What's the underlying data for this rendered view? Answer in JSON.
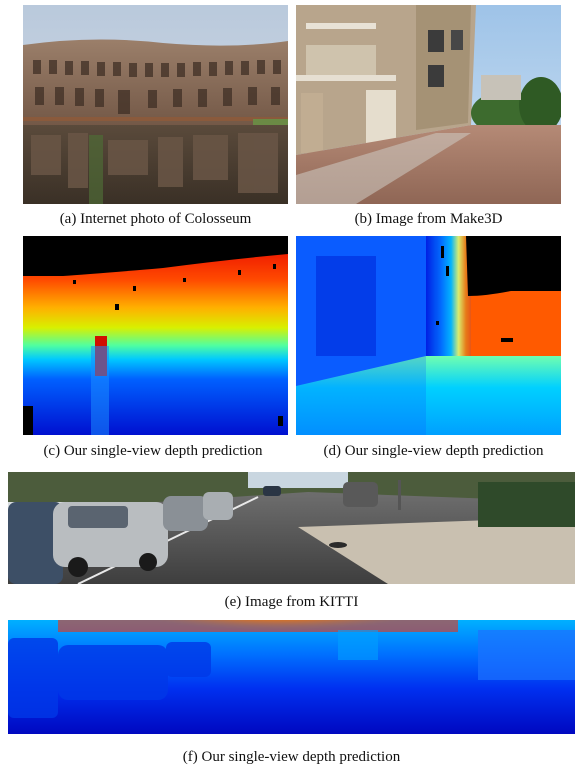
{
  "figure": {
    "panels": [
      {
        "id": "a",
        "caption": "(a) Internet photo of Colosseum",
        "content": "photo"
      },
      {
        "id": "b",
        "caption": "(b) Image from Make3D",
        "content": "photo"
      },
      {
        "id": "c",
        "caption": "(c) Our single-view depth prediction",
        "content": "depth-map"
      },
      {
        "id": "d",
        "caption": "(d) Our single-view depth prediction",
        "content": "depth-map"
      },
      {
        "id": "e",
        "caption": "(e) Image from KITTI",
        "content": "photo"
      },
      {
        "id": "f",
        "caption": "(f) Our single-view depth prediction",
        "content": "depth-map"
      }
    ]
  }
}
